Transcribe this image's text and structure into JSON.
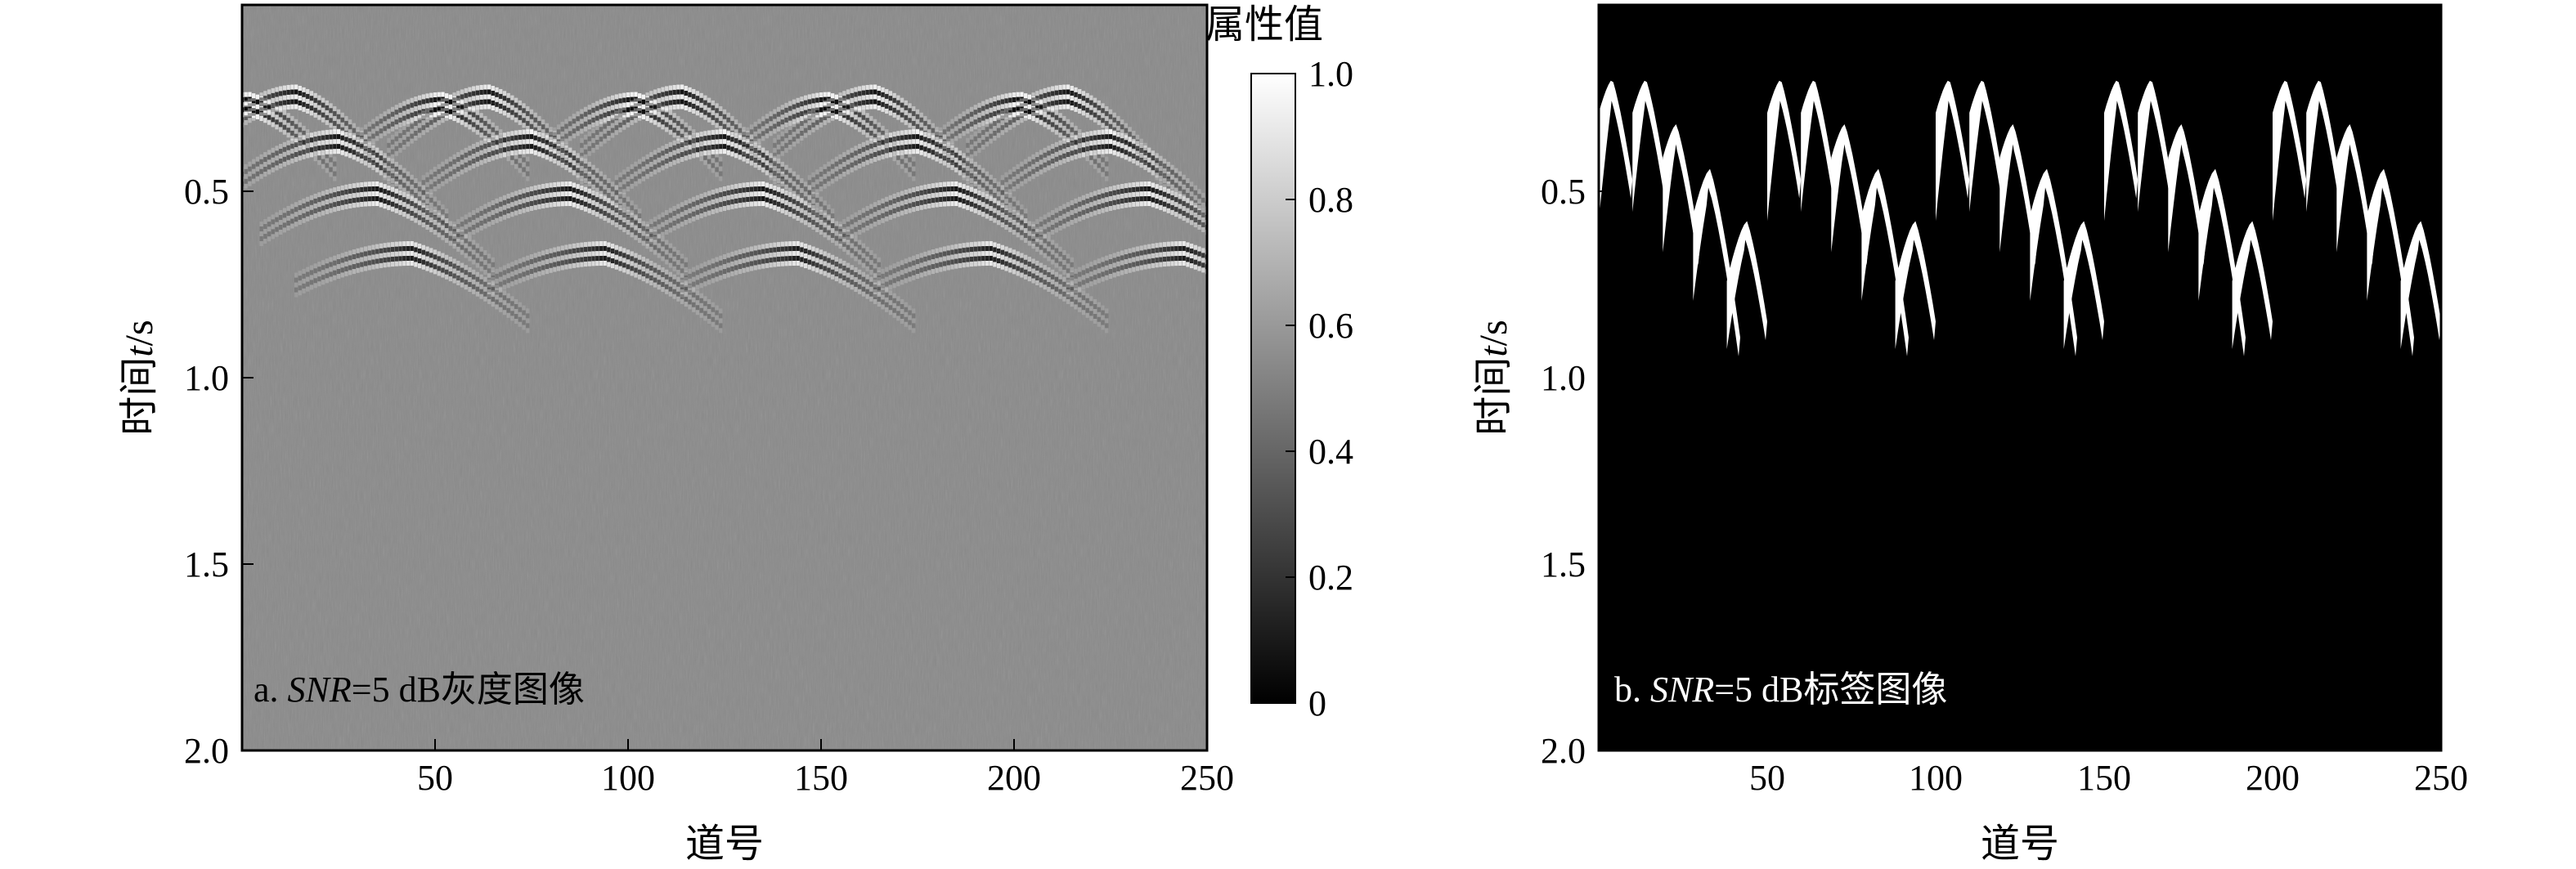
{
  "chart_data": [
    {
      "type": "heatmap",
      "caption_prefix": "a. ",
      "caption_italic": "SNR",
      "caption_suffix": "=5 dB灰度图像",
      "xlabel": "道号",
      "ylabel_prefix": "时间",
      "ylabel_italic": "t",
      "ylabel_suffix": "/s",
      "xlim": [
        0,
        250
      ],
      "ylim": [
        0,
        2.0
      ],
      "y_inverted": true,
      "xticks": [
        50,
        100,
        150,
        200,
        250
      ],
      "xtick_labels": [
        "50",
        "100",
        "150",
        "200",
        "250"
      ],
      "yticks": [
        0.5,
        1.0,
        1.5,
        2.0
      ],
      "ytick_labels": [
        "0.5",
        "1.0",
        "1.5",
        "2.0"
      ],
      "background_value": 0.5,
      "colormap": "gray",
      "colorbar": {
        "title": "属性值",
        "range": [
          0,
          1.0
        ],
        "ticks": [
          0,
          0.2,
          0.4,
          0.6,
          0.8,
          1.0
        ],
        "tick_labels": [
          "0",
          "0.2",
          "0.4",
          "0.6",
          "0.8",
          "1.0"
        ]
      },
      "hyperbola_groups_x_start": [
        0,
        50,
        100,
        150,
        200
      ],
      "hyperbola_apexes": [
        {
          "dx": 2,
          "t": 0.26,
          "width": 22,
          "amp": 1.0
        },
        {
          "dx": 14,
          "t": 0.24,
          "width": 26,
          "amp": 0.9
        },
        {
          "dx": 25,
          "t": 0.36,
          "width": 28,
          "amp": 0.9
        },
        {
          "dx": 35,
          "t": 0.5,
          "width": 30,
          "amp": 0.9
        },
        {
          "dx": 44,
          "t": 0.66,
          "width": 30,
          "amp": 0.85
        }
      ]
    },
    {
      "type": "heatmap",
      "caption_prefix": "b. ",
      "caption_italic": "SNR",
      "caption_suffix": "=5 dB标签图像",
      "xlabel": "道号",
      "ylabel_prefix": "时间",
      "ylabel_italic": "t",
      "ylabel_suffix": "/s",
      "xlim": [
        0,
        250
      ],
      "ylim": [
        0,
        2.0
      ],
      "y_inverted": true,
      "xticks": [
        50,
        100,
        150,
        200,
        250
      ],
      "xtick_labels": [
        "50",
        "100",
        "150",
        "200",
        "250"
      ],
      "yticks": [
        0.5,
        1.0,
        1.5,
        2.0
      ],
      "ytick_labels": [
        "0.5",
        "1.0",
        "1.5",
        "2.0"
      ],
      "colormap": "binary",
      "label_values": [
        0,
        1
      ],
      "hyperbola_groups_x_start": [
        0,
        50,
        100,
        150,
        200
      ],
      "hyperbola_apexes": [
        {
          "dx": 4,
          "t": 0.2,
          "left_span": 4,
          "right_span": 6,
          "depth": 0.4
        },
        {
          "dx": 14,
          "t": 0.2,
          "left_span": 4,
          "right_span": 6,
          "depth": 0.36
        },
        {
          "dx": 23,
          "t": 0.32,
          "left_span": 4,
          "right_span": 7,
          "depth": 0.34
        },
        {
          "dx": 33,
          "t": 0.44,
          "left_span": 5,
          "right_span": 9,
          "depth": 0.3
        },
        {
          "dx": 44,
          "t": 0.58,
          "left_span": 6,
          "right_span": 6,
          "depth": 0.22
        }
      ]
    }
  ]
}
